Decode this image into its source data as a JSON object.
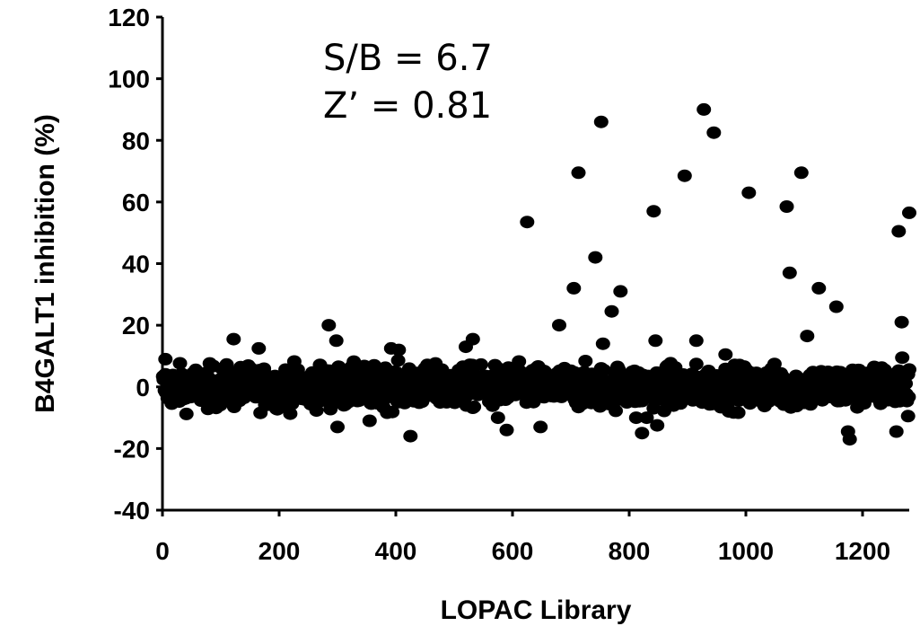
{
  "chart_data": {
    "type": "scatter",
    "title": "",
    "xlabel": "LOPAC Library",
    "ylabel": "B4GALT1 inhibition  (%)",
    "xlim": [
      0,
      1280
    ],
    "ylim": [
      -40,
      120
    ],
    "xticks": [
      0,
      200,
      400,
      600,
      800,
      1000,
      1200
    ],
    "yticks": [
      -40,
      -20,
      0,
      20,
      40,
      60,
      80,
      100,
      120
    ],
    "grid": false,
    "legend": "none",
    "marker_color": "#000000",
    "annotations": [
      "S/B = 6.7",
      "Z’ = 0.81"
    ],
    "noise_band": {
      "x_range": [
        1,
        1280
      ],
      "y_center": 0,
      "y_spread": [
        -10,
        10
      ],
      "count": 1280,
      "note_values_shown": "dense cluster of points around 0"
    },
    "hits": [
      {
        "x": 5,
        "y": 9
      },
      {
        "x": 122,
        "y": 15.5
      },
      {
        "x": 165,
        "y": 12.5
      },
      {
        "x": 285,
        "y": 20
      },
      {
        "x": 298,
        "y": 15
      },
      {
        "x": 300,
        "y": -13
      },
      {
        "x": 355,
        "y": -11
      },
      {
        "x": 392,
        "y": 12.5
      },
      {
        "x": 405,
        "y": 12
      },
      {
        "x": 425,
        "y": -16
      },
      {
        "x": 520,
        "y": 13
      },
      {
        "x": 532,
        "y": 15.5
      },
      {
        "x": 575,
        "y": -10
      },
      {
        "x": 590,
        "y": -14
      },
      {
        "x": 625,
        "y": 53.5
      },
      {
        "x": 648,
        "y": -13
      },
      {
        "x": 680,
        "y": 20
      },
      {
        "x": 705,
        "y": 32
      },
      {
        "x": 713,
        "y": 69.5
      },
      {
        "x": 742,
        "y": 42
      },
      {
        "x": 752,
        "y": 86
      },
      {
        "x": 755,
        "y": 14
      },
      {
        "x": 770,
        "y": 24.5
      },
      {
        "x": 785,
        "y": 31
      },
      {
        "x": 812,
        "y": -10
      },
      {
        "x": 822,
        "y": -15
      },
      {
        "x": 830,
        "y": -10
      },
      {
        "x": 842,
        "y": 57
      },
      {
        "x": 845,
        "y": 15
      },
      {
        "x": 848,
        "y": -12.5
      },
      {
        "x": 895,
        "y": 68.5
      },
      {
        "x": 915,
        "y": 15
      },
      {
        "x": 928,
        "y": 90
      },
      {
        "x": 945,
        "y": 82.5
      },
      {
        "x": 965,
        "y": 10.5
      },
      {
        "x": 1005,
        "y": 63
      },
      {
        "x": 1070,
        "y": 58.5
      },
      {
        "x": 1075,
        "y": 37
      },
      {
        "x": 1095,
        "y": 69.5
      },
      {
        "x": 1105,
        "y": 16.5
      },
      {
        "x": 1125,
        "y": 32
      },
      {
        "x": 1155,
        "y": 26
      },
      {
        "x": 1175,
        "y": -14.5
      },
      {
        "x": 1178,
        "y": -17
      },
      {
        "x": 1258,
        "y": -14.5
      },
      {
        "x": 1262,
        "y": 50.5
      },
      {
        "x": 1267,
        "y": 21
      },
      {
        "x": 1268,
        "y": 9.5
      },
      {
        "x": 1272,
        "y": 4
      },
      {
        "x": 1278,
        "y": -9.5
      },
      {
        "x": 1280,
        "y": 56.5
      }
    ]
  }
}
